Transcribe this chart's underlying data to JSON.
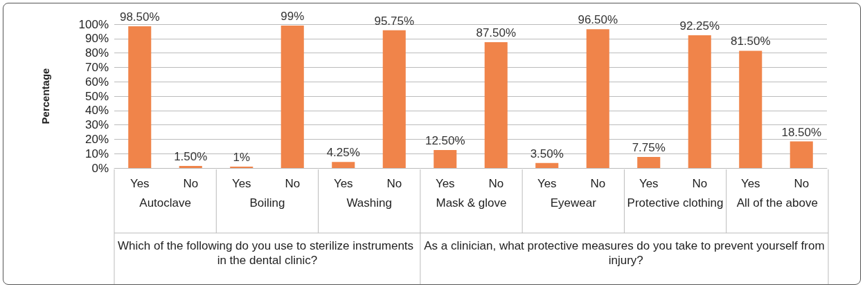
{
  "chart_data": {
    "type": "bar",
    "ylabel": "Percentage",
    "categories": [
      "Yes",
      "No",
      "Yes",
      "No",
      "Yes",
      "No",
      "Yes",
      "No",
      "Yes",
      "No",
      "Yes",
      "No",
      "Yes",
      "No"
    ],
    "values": [
      98.5,
      1.5,
      1,
      99,
      4.25,
      95.75,
      12.5,
      87.5,
      3.5,
      96.5,
      7.75,
      92.25,
      81.5,
      18.5
    ],
    "value_labels": [
      "98.50%",
      "1.50%",
      "1%",
      "99%",
      "4.25%",
      "95.75%",
      "12.50%",
      "87.50%",
      "3.50%",
      "96.50%",
      "7.75%",
      "92.25%",
      "81.50%",
      "18.50%"
    ],
    "color": "#f0844a",
    "ylim": [
      0,
      100
    ],
    "yticks": [
      {
        "value": 0,
        "label": "0%"
      },
      {
        "value": 10,
        "label": "10%"
      },
      {
        "value": 20,
        "label": "20%"
      },
      {
        "value": 30,
        "label": "30%"
      },
      {
        "value": 40,
        "label": "40%"
      },
      {
        "value": 50,
        "label": "50%"
      },
      {
        "value": 60,
        "label": "60%"
      },
      {
        "value": 70,
        "label": "70%"
      },
      {
        "value": 80,
        "label": "80%"
      },
      {
        "value": 90,
        "label": "90%"
      },
      {
        "value": 100,
        "label": "100%"
      }
    ],
    "grid": "y",
    "annotations": [
      "Autoclave",
      "Boiling",
      "Washing",
      "Mask & glove",
      "Eyewear",
      "Protective clothing",
      "All of the above",
      "Which of the following do you use to sterilize instruments in the dental clinic?",
      "As a clinician, what protective measures do you take to prevent yourself from injury?"
    ]
  }
}
